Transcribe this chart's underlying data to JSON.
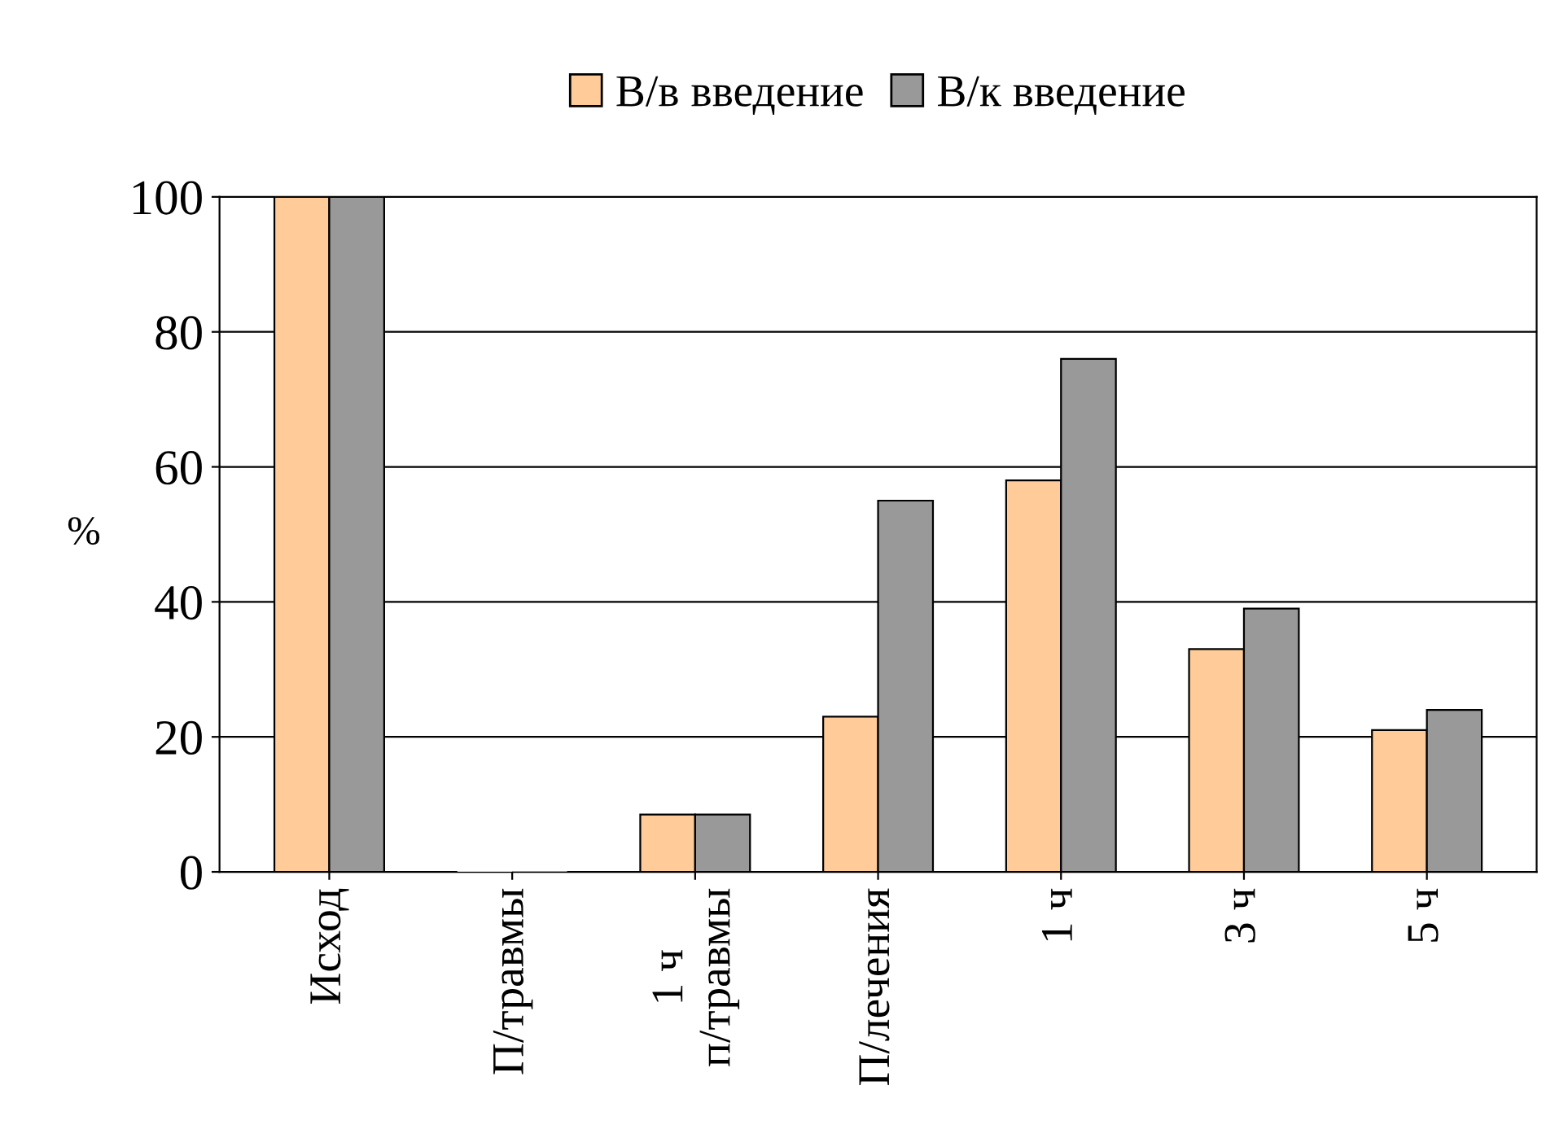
{
  "chart_data": {
    "type": "bar",
    "ylabel": "%",
    "categories": [
      "Исход",
      "П/травмы",
      "1 ч\nп/травмы",
      "П/лечения",
      "1 ч",
      "3 ч",
      "5 ч"
    ],
    "series": [
      {
        "name": "В/в введение",
        "color": "#ffcc99",
        "values": [
          100,
          0,
          8.5,
          23,
          58,
          33,
          21
        ]
      },
      {
        "name": "В/к введение",
        "color": "#999999",
        "values": [
          100,
          0,
          8.5,
          55,
          76,
          39,
          24
        ]
      }
    ],
    "ylim": [
      0,
      100
    ],
    "yticks": [
      0,
      20,
      40,
      60,
      80,
      100
    ],
    "grid": "y",
    "legend": "top"
  }
}
